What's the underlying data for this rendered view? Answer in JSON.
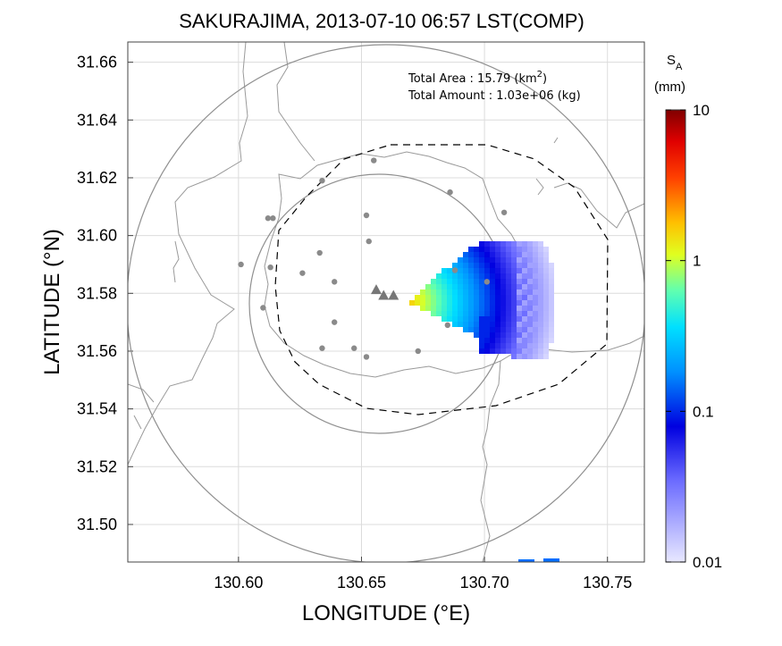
{
  "title": "SAKURAJIMA, 2013-07-10 06:57 LST(COMP)",
  "x_axis": {
    "label": "LONGITUDE (°E)",
    "range": [
      130.555,
      130.765
    ],
    "ticks": [
      130.6,
      130.65,
      130.7,
      130.75
    ],
    "tick_labels": [
      "130.60",
      "130.65",
      "130.70",
      "130.75"
    ]
  },
  "y_axis": {
    "label": "LATITUDE (°N)",
    "range": [
      31.487,
      31.667
    ],
    "ticks": [
      31.5,
      31.52,
      31.54,
      31.56,
      31.58,
      31.6,
      31.62,
      31.64,
      31.66
    ],
    "tick_labels": [
      "31.50",
      "31.52",
      "31.54",
      "31.56",
      "31.58",
      "31.60",
      "31.62",
      "31.64",
      "31.66"
    ]
  },
  "info": {
    "area_label": "Total Area   : 15.79 (km",
    "area_sup": "2",
    "area_tail": ")",
    "amount_label": "Total Amount : 1.03e+06 (kg)"
  },
  "colorbar": {
    "title_main": "S",
    "title_sub": "A",
    "unit": "(mm)",
    "scale": "log",
    "range": [
      0.01,
      10
    ],
    "tick_labels": [
      "10",
      "1",
      "0.1",
      "0.01"
    ]
  },
  "chart_data": {
    "type": "heatmap",
    "grid": true,
    "vents": [
      [
        130.656,
        31.581
      ],
      [
        130.659,
        31.579
      ],
      [
        130.663,
        31.579
      ]
    ],
    "stations": [
      [
        130.655,
        31.626
      ],
      [
        130.634,
        31.619
      ],
      [
        130.686,
        31.615
      ],
      [
        130.612,
        31.606
      ],
      [
        130.614,
        31.606
      ],
      [
        130.652,
        31.607
      ],
      [
        130.708,
        31.608
      ],
      [
        130.653,
        31.598
      ],
      [
        130.601,
        31.59
      ],
      [
        130.633,
        31.594
      ],
      [
        130.613,
        31.589
      ],
      [
        130.626,
        31.587
      ],
      [
        130.639,
        31.584
      ],
      [
        130.688,
        31.588
      ],
      [
        130.701,
        31.584
      ],
      [
        130.61,
        31.575
      ],
      [
        130.639,
        31.57
      ],
      [
        130.685,
        31.569
      ],
      [
        130.634,
        31.561
      ],
      [
        130.647,
        31.561
      ],
      [
        130.673,
        31.56
      ],
      [
        130.652,
        31.558
      ]
    ]
  }
}
